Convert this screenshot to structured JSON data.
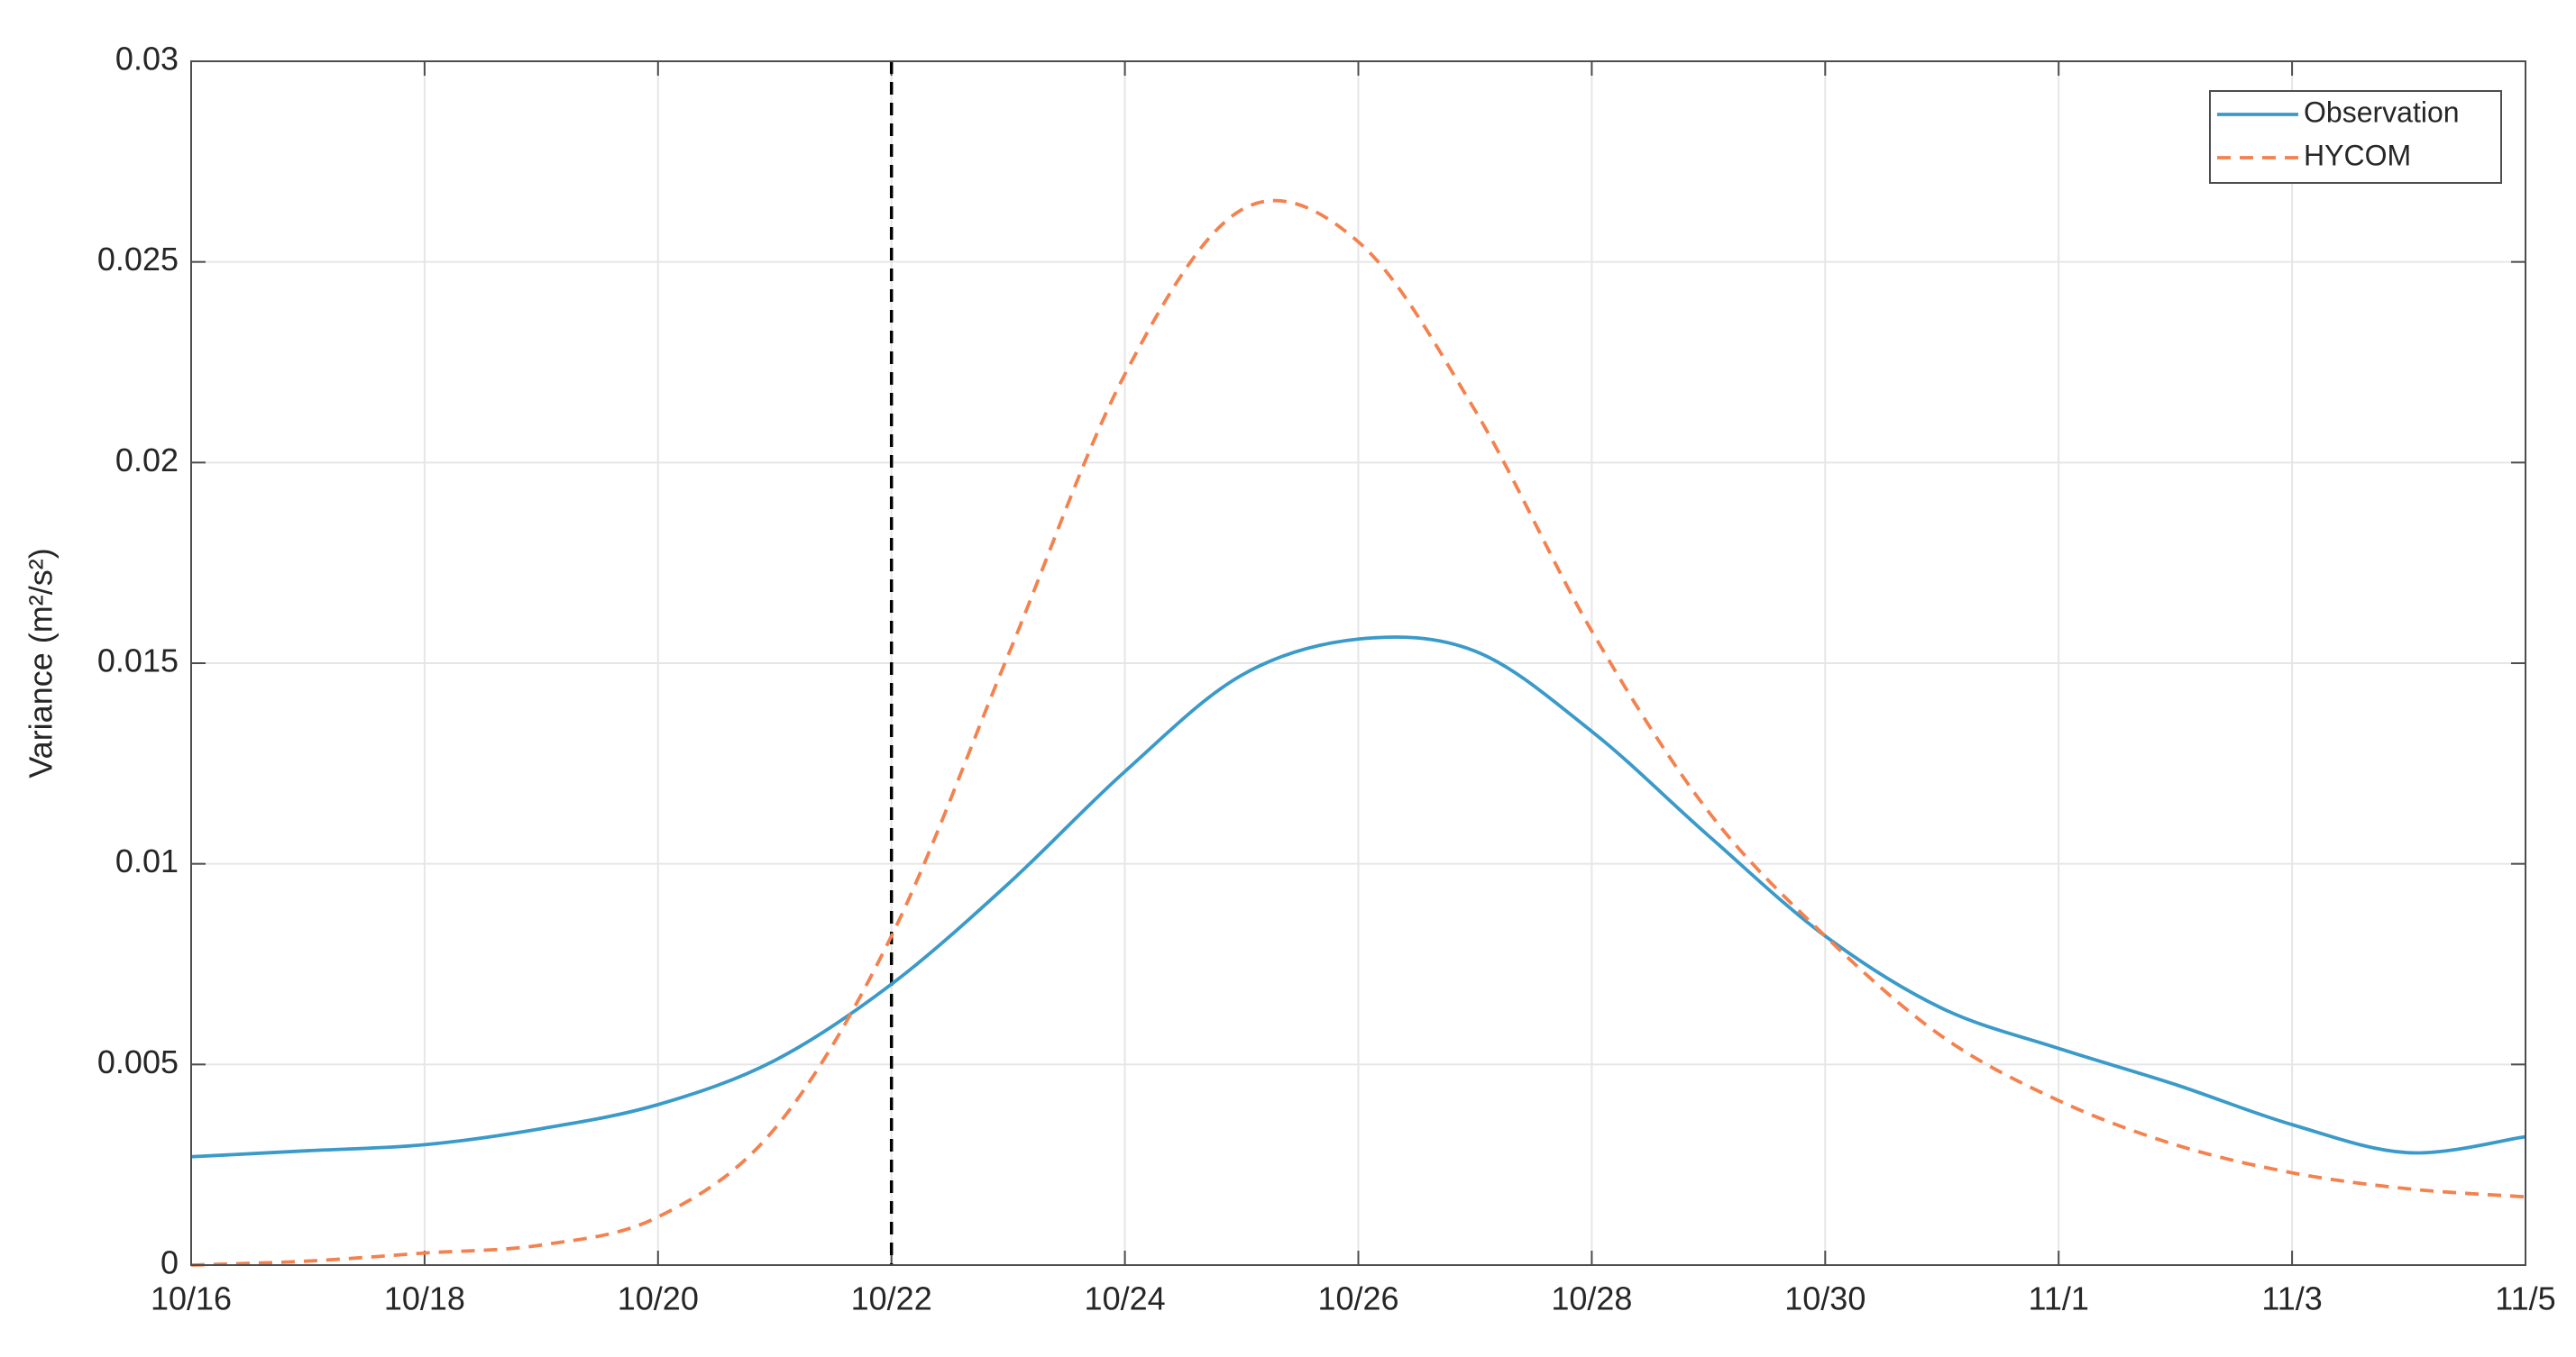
{
  "chart_data": {
    "type": "line",
    "y_label": "Variance (m²/s²)",
    "x": [
      "10/16",
      "10/17",
      "10/18",
      "10/19",
      "10/20",
      "10/21",
      "10/22",
      "10/23",
      "10/24",
      "10/25",
      "10/26",
      "10/27",
      "10/28",
      "10/29",
      "10/30",
      "10/31",
      "11/1",
      "11/2",
      "11/3",
      "11/4",
      "11/5"
    ],
    "series": [
      {
        "name": "Observation",
        "color": "#3a9ac9",
        "dash": false,
        "values": [
          0.0027,
          0.00285,
          0.003,
          0.0034,
          0.004,
          0.0051,
          0.007,
          0.0095,
          0.0123,
          0.0147,
          0.0156,
          0.0153,
          0.0133,
          0.0107,
          0.0082,
          0.0064,
          0.0054,
          0.0045,
          0.0035,
          0.0028,
          0.0032
        ]
      },
      {
        "name": "HYCOM",
        "color": "#f4814e",
        "dash": true,
        "values": [
          0,
          0.0001,
          0.0003,
          0.0005,
          0.0012,
          0.0034,
          0.0082,
          0.0152,
          0.0222,
          0.0263,
          0.0255,
          0.0213,
          0.0158,
          0.0113,
          0.0082,
          0.0057,
          0.0041,
          0.003,
          0.0023,
          0.0019,
          0.0017
        ]
      }
    ],
    "marker_x": "10/22",
    "xticks": [
      "10/16",
      "10/18",
      "10/20",
      "10/22",
      "10/24",
      "10/26",
      "10/28",
      "10/30",
      "11/1",
      "11/3",
      "11/5"
    ],
    "ylim": [
      0,
      0.03
    ],
    "yticks": [
      0,
      0.005,
      0.01,
      0.015,
      0.02,
      0.025,
      0.03
    ],
    "grid": true,
    "legend": "upper-right"
  }
}
